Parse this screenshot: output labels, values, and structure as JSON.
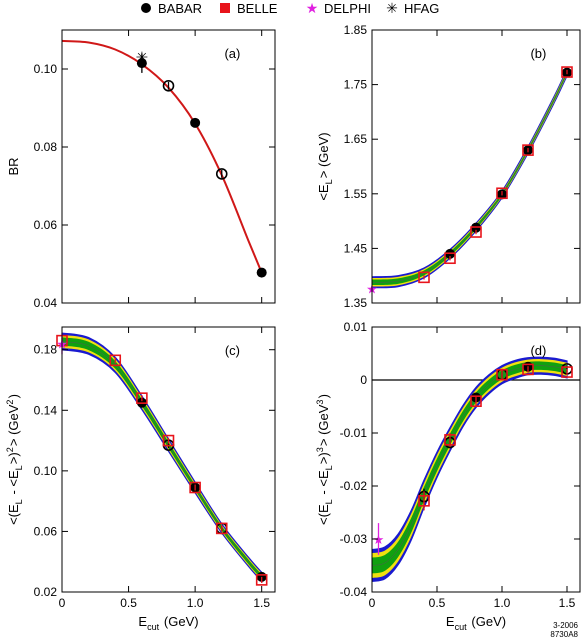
{
  "legend": {
    "placement": "top",
    "entries": [
      {
        "name": "BABAR",
        "marker": "filled-circle",
        "color": "#000000"
      },
      {
        "name": "BELLE",
        "marker": "filled-square",
        "color": "#e8141b"
      },
      {
        "name": "DELPHI",
        "marker": "star",
        "color": "#e020e0"
      },
      {
        "name": "HFAG",
        "marker": "asterisk",
        "color": "#000000"
      }
    ]
  },
  "stamp": {
    "date": "3-2006",
    "id": "8730A8"
  },
  "colors": {
    "band_outer": "#1a1ad0",
    "band_mid": "#f0e010",
    "band_inner": "#10a010",
    "fit_line": "#d01818",
    "belle": "#e8141b",
    "delphi": "#e020e0"
  },
  "chart_data": [
    {
      "panel": "(a)",
      "type": "scatter",
      "ylabel": "BR",
      "xlabel": "",
      "xlim": [
        0,
        1.6
      ],
      "ylim": [
        0.04,
        0.11
      ],
      "yticks": [
        "0.04",
        "0.06",
        "0.08",
        "0.10"
      ],
      "xticks": [],
      "grid": false,
      "curve": {
        "color": "fit_line",
        "x": [
          0,
          0.2,
          0.4,
          0.6,
          0.8,
          1.0,
          1.2,
          1.4,
          1.5
        ],
        "y": [
          0.1072,
          0.1068,
          0.105,
          0.1012,
          0.0952,
          0.086,
          0.0728,
          0.056,
          0.0478
        ]
      },
      "series": [
        {
          "name": "BABAR",
          "style": "filled",
          "x": [
            0.6,
            1.0,
            1.5
          ],
          "y": [
            0.1015,
            0.0862,
            0.0478
          ],
          "err": [
            0.0025,
            0.001,
            0.001
          ]
        },
        {
          "name": "BABAR",
          "style": "open",
          "x": [
            0.8,
            1.2
          ],
          "y": [
            0.0957,
            0.0731
          ],
          "err": [
            0.001,
            0.001
          ]
        },
        {
          "name": "HFAG",
          "style": "asterisk",
          "x": [
            0.6
          ],
          "y": [
            0.103
          ],
          "err": [
            0
          ]
        }
      ]
    },
    {
      "panel": "(b)",
      "type": "scatter",
      "ylabel": "<E_L> (GeV)",
      "xlabel": "",
      "xlim": [
        0,
        1.6
      ],
      "ylim": [
        1.35,
        1.85
      ],
      "yticks": [
        "1.35",
        "1.45",
        "1.55",
        "1.65",
        "1.75",
        "1.85"
      ],
      "xticks": [],
      "grid": false,
      "band": {
        "x": [
          0,
          0.2,
          0.4,
          0.6,
          0.8,
          1.0,
          1.2,
          1.4,
          1.5
        ],
        "y": [
          1.388,
          1.39,
          1.405,
          1.44,
          1.489,
          1.549,
          1.63,
          1.722,
          1.772
        ],
        "w": [
          0.01,
          0.01,
          0.009,
          0.008,
          0.007,
          0.006,
          0.006,
          0.006,
          0.006
        ]
      },
      "series": [
        {
          "name": "BABAR",
          "style": "filled",
          "x": [
            0.6,
            0.8,
            1.0,
            1.2,
            1.5
          ],
          "y": [
            1.44,
            1.488,
            1.549,
            1.63,
            1.772
          ],
          "err": [
            0.004,
            0.004,
            0.004,
            0.004,
            0.004
          ]
        },
        {
          "name": "BELLE",
          "style": "open-square",
          "x": [
            0.4,
            0.6,
            0.8,
            1.0,
            1.2,
            1.5
          ],
          "y": [
            1.397,
            1.432,
            1.48,
            1.551,
            1.63,
            1.773
          ],
          "err": [
            0.004,
            0.004,
            0.004,
            0.004,
            0.004,
            0.004
          ]
        },
        {
          "name": "DELPHI",
          "style": "star",
          "x": [
            0.0
          ],
          "y": [
            1.377
          ],
          "err": [
            0
          ]
        }
      ]
    },
    {
      "panel": "(c)",
      "type": "scatter",
      "ylabel": "<(E_L - <E_L>)^2> (GeV^2)",
      "xlabel": "E_cut (GeV)",
      "xlim": [
        0,
        1.6
      ],
      "ylim": [
        0.02,
        0.195
      ],
      "yticks": [
        "0.02",
        "0.06",
        "0.10",
        "0.14",
        "0.18"
      ],
      "xticks": [
        "0",
        "0.5",
        "1.0",
        "1.5"
      ],
      "grid": false,
      "band": {
        "x": [
          0,
          0.2,
          0.4,
          0.6,
          0.8,
          1.0,
          1.2,
          1.4,
          1.5
        ],
        "y": [
          0.1855,
          0.1825,
          0.17,
          0.145,
          0.117,
          0.089,
          0.062,
          0.04,
          0.03
        ],
        "w": [
          0.0055,
          0.0055,
          0.005,
          0.0045,
          0.004,
          0.0035,
          0.003,
          0.003,
          0.003
        ]
      },
      "series": [
        {
          "name": "BABAR",
          "style": "filled",
          "x": [
            0.6,
            1.0,
            1.5
          ],
          "y": [
            0.145,
            0.089,
            0.03
          ],
          "err": [
            0.002,
            0.002,
            0.002
          ]
        },
        {
          "name": "BABAR",
          "style": "open",
          "x": [
            0.8,
            1.2
          ],
          "y": [
            0.117,
            0.062
          ],
          "err": [
            0.002,
            0.002
          ]
        },
        {
          "name": "BELLE",
          "style": "open-square",
          "x": [
            0.0,
            0.4,
            0.6,
            0.8,
            1.0,
            1.2,
            1.5
          ],
          "y": [
            0.186,
            0.173,
            0.148,
            0.12,
            0.089,
            0.062,
            0.028
          ],
          "err": [
            0.002,
            0.002,
            0.002,
            0.002,
            0.002,
            0.002,
            0.002
          ]
        },
        {
          "name": "DELPHI",
          "style": "star",
          "x": [
            0.0
          ],
          "y": [
            0.184
          ],
          "err": [
            0.007
          ]
        }
      ]
    },
    {
      "panel": "(d)",
      "type": "scatter",
      "ylabel": "<(E_L - <E_L>)^3> (GeV^3)",
      "xlabel": "E_cut (GeV)",
      "xlim": [
        0,
        1.6
      ],
      "ylim": [
        -0.04,
        0.01
      ],
      "yticks": [
        "-0.04",
        "-0.03",
        "-0.02",
        "-0.01",
        "0",
        "0.01"
      ],
      "xticks": [
        "0",
        "0.5",
        "1.0",
        "1.5"
      ],
      "grid": false,
      "zero_line": true,
      "band": {
        "x": [
          0,
          0.1,
          0.2,
          0.3,
          0.4,
          0.5,
          0.6,
          0.7,
          0.8,
          0.9,
          1.0,
          1.1,
          1.2,
          1.3,
          1.4,
          1.5
        ],
        "y": [
          -0.035,
          -0.0345,
          -0.032,
          -0.0275,
          -0.0215,
          -0.016,
          -0.0112,
          -0.0068,
          -0.0033,
          -0.0008,
          0.001,
          0.002,
          0.0026,
          0.0027,
          0.0025,
          0.002
        ],
        "w": [
          0.003,
          0.003,
          0.0029,
          0.0028,
          0.0026,
          0.0024,
          0.0022,
          0.002,
          0.0019,
          0.0018,
          0.0017,
          0.0017,
          0.0016,
          0.0016,
          0.0016,
          0.0016
        ]
      },
      "series": [
        {
          "name": "BABAR",
          "style": "filled",
          "x": [
            0.8,
            1.2
          ],
          "y": [
            -0.0033,
            0.0025
          ],
          "err": [
            0.0008,
            0.0006
          ]
        },
        {
          "name": "BABAR",
          "style": "open",
          "x": [
            0.4,
            0.6,
            1.0,
            1.5
          ],
          "y": [
            -0.022,
            -0.0118,
            0.001,
            0.0021
          ],
          "err": [
            0.0015,
            0.001,
            0.0007,
            0.0006
          ]
        },
        {
          "name": "BELLE",
          "style": "open-square",
          "x": [
            0.4,
            0.6,
            0.8,
            1.0,
            1.2,
            1.5
          ],
          "y": [
            -0.0228,
            -0.0113,
            -0.004,
            0.001,
            0.002,
            0.0015
          ],
          "err": [
            0.0018,
            0.0013,
            0.001,
            0.0008,
            0.0006,
            0.0006
          ]
        },
        {
          "name": "DELPHI",
          "style": "star",
          "x": [
            0.05
          ],
          "y": [
            -0.03
          ],
          "err": [
            0.003
          ]
        }
      ]
    }
  ]
}
